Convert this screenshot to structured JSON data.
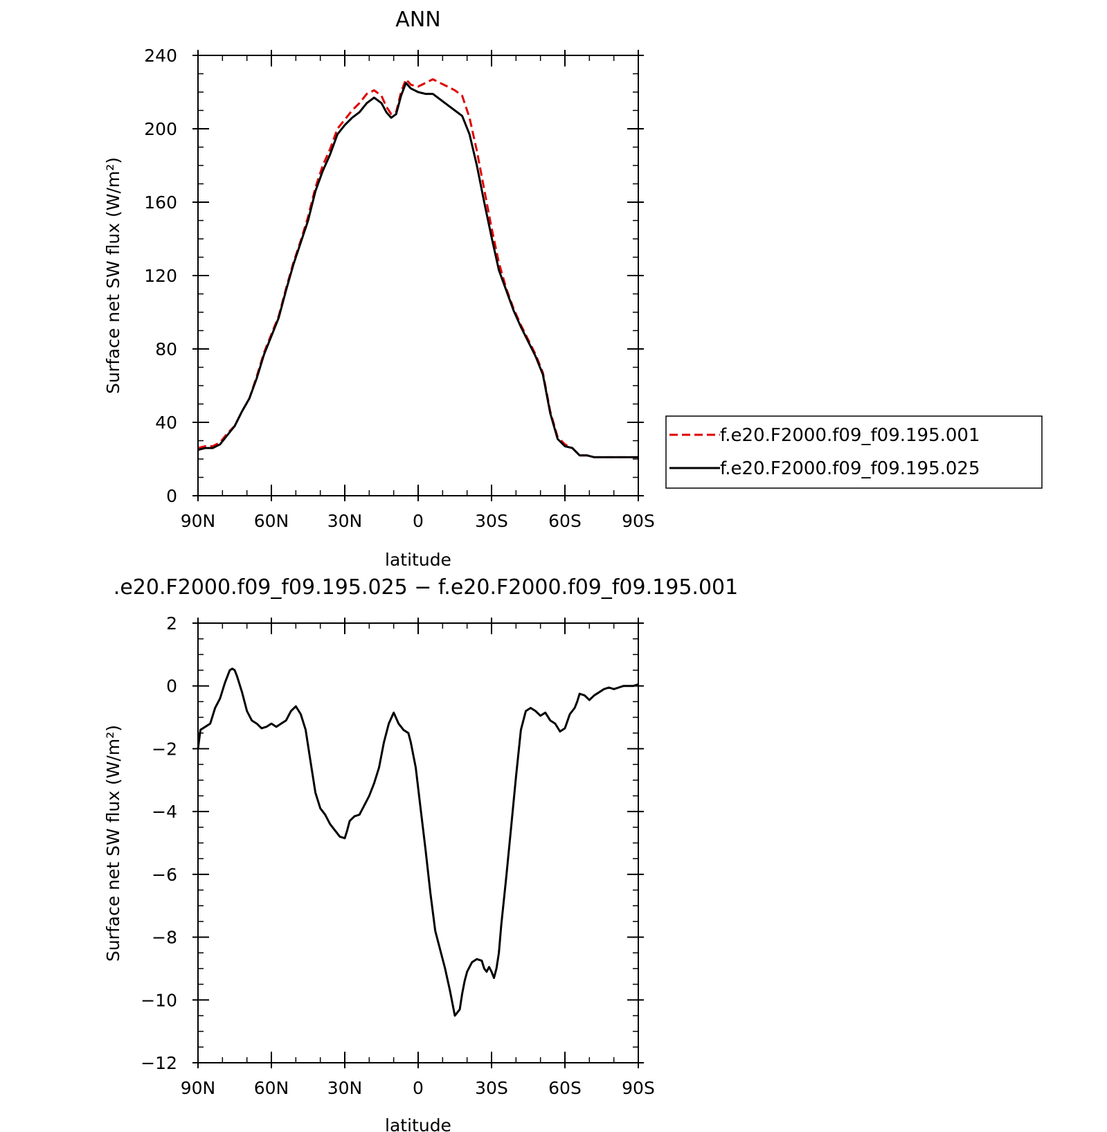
{
  "chart_data": [
    {
      "type": "line",
      "title": "ANN",
      "xlabel": "latitude",
      "ylabel": "Surface net SW flux (W/m²)",
      "x_ticks": [
        "90N",
        "60N",
        "30N",
        "0",
        "30S",
        "60S",
        "90S"
      ],
      "x_tick_values": [
        90,
        60,
        30,
        0,
        -30,
        -60,
        -90
      ],
      "xlim": [
        90,
        -90
      ],
      "y_ticks": [
        "0",
        "40",
        "80",
        "120",
        "160",
        "200",
        "240"
      ],
      "y_tick_values": [
        0,
        40,
        80,
        120,
        160,
        200,
        240
      ],
      "ylim": [
        0,
        240
      ],
      "legend_position": "right",
      "series": [
        {
          "name": "f.e20.F2000.f09_f09.195.001",
          "color": "#e00000",
          "dash": "dashed",
          "x": [
            90,
            87,
            84,
            81,
            78,
            75,
            72,
            69,
            66,
            63,
            60,
            57,
            54,
            51,
            48,
            45,
            42,
            39,
            36,
            33,
            30,
            27,
            24,
            21,
            18,
            15,
            13,
            11,
            9,
            7,
            5,
            3,
            0,
            -3,
            -6,
            -9,
            -12,
            -15,
            -18,
            -21,
            -24,
            -27,
            -30,
            -33,
            -36,
            -39,
            -42,
            -45,
            -48,
            -51,
            -54,
            -57,
            -60,
            -63,
            -66,
            -69,
            -72,
            -75,
            -78,
            -81,
            -84,
            -87,
            -90
          ],
          "y": [
            26,
            27,
            27,
            29,
            34,
            38,
            46,
            53,
            65,
            78,
            88,
            98,
            113,
            127,
            139,
            152,
            168,
            180,
            189,
            200,
            205,
            210,
            214,
            219,
            221,
            218,
            212,
            208,
            209,
            220,
            227,
            224,
            223,
            225,
            227,
            225,
            223,
            221,
            218,
            206,
            188,
            167,
            146,
            127,
            113,
            102,
            93,
            85,
            77,
            67,
            46,
            32,
            28,
            26,
            22,
            22,
            21,
            21,
            21,
            21,
            21,
            21,
            21
          ]
        },
        {
          "name": "f.e20.F2000.f09_f09.195.025",
          "color": "#000000",
          "dash": "solid",
          "x": [
            90,
            87,
            84,
            81,
            78,
            75,
            72,
            69,
            66,
            63,
            60,
            57,
            54,
            51,
            48,
            45,
            42,
            39,
            36,
            33,
            30,
            27,
            24,
            21,
            18,
            15,
            13,
            11,
            9,
            7,
            5,
            3,
            0,
            -3,
            -6,
            -9,
            -12,
            -15,
            -18,
            -21,
            -24,
            -27,
            -30,
            -33,
            -36,
            -39,
            -42,
            -45,
            -48,
            -51,
            -54,
            -57,
            -60,
            -63,
            -66,
            -69,
            -72,
            -75,
            -78,
            -81,
            -84,
            -87,
            -90
          ],
          "y": [
            25,
            26,
            26,
            28,
            33,
            38,
            46,
            53,
            64,
            77,
            87,
            97,
            112,
            126,
            138,
            150,
            166,
            177,
            186,
            197,
            202,
            206,
            209,
            214,
            217,
            214,
            209,
            206,
            208,
            218,
            225,
            222,
            220,
            219,
            219,
            216,
            213,
            210,
            207,
            197,
            180,
            160,
            141,
            123,
            112,
            101,
            92,
            84,
            76,
            66,
            45,
            31,
            27,
            26,
            22,
            22,
            21,
            21,
            21,
            21,
            21,
            21,
            21
          ]
        }
      ]
    },
    {
      "type": "line",
      "title": ".e20.F2000.f09_f09.195.025 − f.e20.F2000.f09_f09.195.001",
      "xlabel": "latitude",
      "ylabel": "Surface net SW flux (W/m²)",
      "x_ticks": [
        "90N",
        "60N",
        "30N",
        "0",
        "30S",
        "60S",
        "90S"
      ],
      "x_tick_values": [
        90,
        60,
        30,
        0,
        -30,
        -60,
        -90
      ],
      "xlim": [
        90,
        -90
      ],
      "y_ticks": [
        "2",
        "0",
        "−2",
        "−4",
        "−6",
        "−8",
        "−10",
        "−12"
      ],
      "y_tick_values": [
        2,
        0,
        -2,
        -4,
        -6,
        -8,
        -10,
        -12
      ],
      "ylim": [
        -12,
        2
      ],
      "series": [
        {
          "color": "#000000",
          "dash": "solid",
          "x": [
            90,
            89,
            87,
            85,
            83,
            81,
            79,
            77,
            76,
            75,
            74,
            72,
            70,
            68,
            66,
            64,
            62,
            60,
            58,
            56,
            54,
            52,
            50,
            48,
            46,
            44,
            42,
            40,
            38,
            36,
            34,
            32,
            30,
            29,
            28,
            26,
            24,
            22,
            20,
            18,
            16,
            14,
            12,
            10,
            8,
            6,
            5,
            4,
            3,
            1,
            -1,
            -3,
            -5,
            -7,
            -9,
            -11,
            -13,
            -15,
            -17,
            -18,
            -19,
            -20,
            -22,
            -24,
            -26,
            -27,
            -28,
            -29,
            -30,
            -31,
            -32,
            -33,
            -34,
            -36,
            -38,
            -40,
            -42,
            -44,
            -46,
            -48,
            -50,
            -51,
            -52,
            -54,
            -56,
            -58,
            -60,
            -62,
            -64,
            -65,
            -66,
            -68,
            -70,
            -72,
            -74,
            -76,
            -78,
            -80,
            -82,
            -84,
            -86,
            -88,
            -90
          ],
          "y": [
            -2.0,
            -1.4,
            -1.3,
            -1.2,
            -0.7,
            -0.4,
            0.1,
            0.5,
            0.55,
            0.5,
            0.3,
            -0.2,
            -0.8,
            -1.1,
            -1.2,
            -1.35,
            -1.3,
            -1.2,
            -1.3,
            -1.2,
            -1.1,
            -0.8,
            -0.65,
            -0.9,
            -1.4,
            -2.4,
            -3.4,
            -3.9,
            -4.1,
            -4.4,
            -4.6,
            -4.8,
            -4.85,
            -4.6,
            -4.3,
            -4.15,
            -4.1,
            -3.8,
            -3.5,
            -3.1,
            -2.6,
            -1.8,
            -1.2,
            -0.85,
            -1.2,
            -1.4,
            -1.45,
            -1.5,
            -1.8,
            -2.6,
            -3.9,
            -5.2,
            -6.6,
            -7.8,
            -8.4,
            -9.0,
            -9.7,
            -10.5,
            -10.3,
            -9.8,
            -9.4,
            -9.1,
            -8.8,
            -8.7,
            -8.75,
            -9.0,
            -9.1,
            -8.95,
            -9.1,
            -9.3,
            -9.0,
            -8.5,
            -7.6,
            -6.1,
            -4.5,
            -2.9,
            -1.4,
            -0.8,
            -0.7,
            -0.8,
            -0.95,
            -0.9,
            -0.85,
            -1.1,
            -1.2,
            -1.45,
            -1.35,
            -0.9,
            -0.7,
            -0.5,
            -0.25,
            -0.3,
            -0.45,
            -0.3,
            -0.2,
            -0.1,
            -0.05,
            -0.1,
            -0.05,
            0.0,
            0.0,
            0.0,
            0.05
          ]
        }
      ]
    }
  ]
}
